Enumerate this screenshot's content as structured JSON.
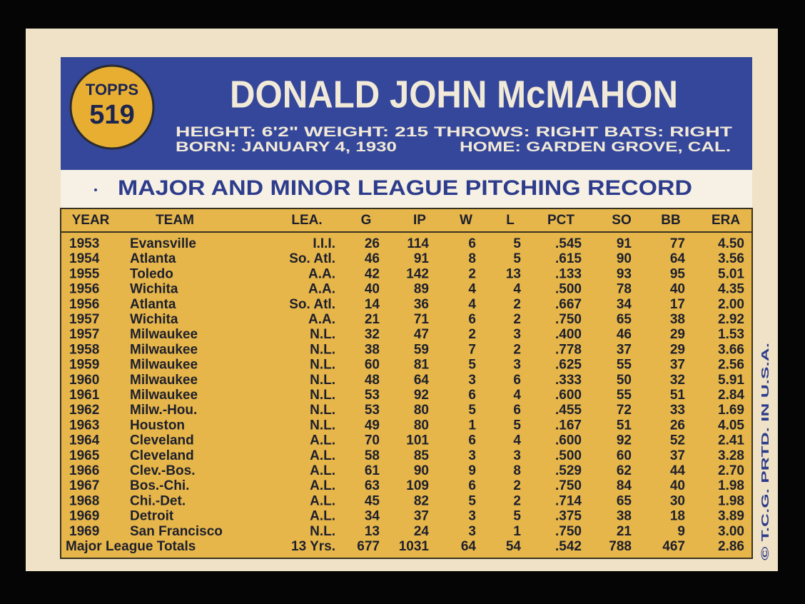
{
  "header": {
    "logo": "TOPPS",
    "number": "519",
    "name": "DONALD JOHN McMAHON",
    "line1": "HEIGHT: 6'2\" WEIGHT: 215 THROWS: RIGHT BATS: RIGHT",
    "born": "BORN: JANUARY 4, 1930",
    "home": "HOME: GARDEN GROVE, CAL."
  },
  "section_title": "MAJOR AND MINOR LEAGUE PITCHING RECORD",
  "table": {
    "headers": [
      "YEAR",
      "TEAM",
      "LEA.",
      "G",
      "IP",
      "W",
      "L",
      "PCT",
      "SO",
      "BB",
      "ERA"
    ],
    "rows": [
      [
        "1953",
        "Evansville",
        "I.I.I.",
        "26",
        "114",
        "6",
        "5",
        ".545",
        "91",
        "77",
        "4.50"
      ],
      [
        "1954",
        "Atlanta",
        "So. Atl.",
        "46",
        "91",
        "8",
        "5",
        ".615",
        "90",
        "64",
        "3.56"
      ],
      [
        "1955",
        "Toledo",
        "A.A.",
        "42",
        "142",
        "2",
        "13",
        ".133",
        "93",
        "95",
        "5.01"
      ],
      [
        "1956",
        "Wichita",
        "A.A.",
        "40",
        "89",
        "4",
        "4",
        ".500",
        "78",
        "40",
        "4.35"
      ],
      [
        "1956",
        "Atlanta",
        "So. Atl.",
        "14",
        "36",
        "4",
        "2",
        ".667",
        "34",
        "17",
        "2.00"
      ],
      [
        "1957",
        "Wichita",
        "A.A.",
        "21",
        "71",
        "6",
        "2",
        ".750",
        "65",
        "38",
        "2.92"
      ],
      [
        "1957",
        "Milwaukee",
        "N.L.",
        "32",
        "47",
        "2",
        "3",
        ".400",
        "46",
        "29",
        "1.53"
      ],
      [
        "1958",
        "Milwaukee",
        "N.L.",
        "38",
        "59",
        "7",
        "2",
        ".778",
        "37",
        "29",
        "3.66"
      ],
      [
        "1959",
        "Milwaukee",
        "N.L.",
        "60",
        "81",
        "5",
        "3",
        ".625",
        "55",
        "37",
        "2.56"
      ],
      [
        "1960",
        "Milwaukee",
        "N.L.",
        "48",
        "64",
        "3",
        "6",
        ".333",
        "50",
        "32",
        "5.91"
      ],
      [
        "1961",
        "Milwaukee",
        "N.L.",
        "53",
        "92",
        "6",
        "4",
        ".600",
        "55",
        "51",
        "2.84"
      ],
      [
        "1962",
        "Milw.-Hou.",
        "N.L.",
        "53",
        "80",
        "5",
        "6",
        ".455",
        "72",
        "33",
        "1.69"
      ],
      [
        "1963",
        "Houston",
        "N.L.",
        "49",
        "80",
        "1",
        "5",
        ".167",
        "51",
        "26",
        "4.05"
      ],
      [
        "1964",
        "Cleveland",
        "A.L.",
        "70",
        "101",
        "6",
        "4",
        ".600",
        "92",
        "52",
        "2.41"
      ],
      [
        "1965",
        "Cleveland",
        "A.L.",
        "58",
        "85",
        "3",
        "3",
        ".500",
        "60",
        "37",
        "3.28"
      ],
      [
        "1966",
        "Clev.-Bos.",
        "A.L.",
        "61",
        "90",
        "9",
        "8",
        ".529",
        "62",
        "44",
        "2.70"
      ],
      [
        "1967",
        "Bos.-Chi.",
        "A.L.",
        "63",
        "109",
        "6",
        "2",
        ".750",
        "84",
        "40",
        "1.98"
      ],
      [
        "1968",
        "Chi.-Det.",
        "A.L.",
        "45",
        "82",
        "5",
        "2",
        ".714",
        "65",
        "30",
        "1.98"
      ],
      [
        "1969",
        "Detroit",
        "A.L.",
        "34",
        "37",
        "3",
        "5",
        ".375",
        "38",
        "18",
        "3.89"
      ],
      [
        "1969",
        "San Francisco",
        "N.L.",
        "13",
        "24",
        "3",
        "1",
        ".750",
        "21",
        "9",
        "3.00"
      ]
    ],
    "totals": [
      "Major League Totals",
      "13 Yrs.",
      "677",
      "1031",
      "64",
      "54",
      ".542",
      "788",
      "467",
      "2.86"
    ]
  },
  "side_note": "© T.C.G. PRTD. IN U.S.A."
}
